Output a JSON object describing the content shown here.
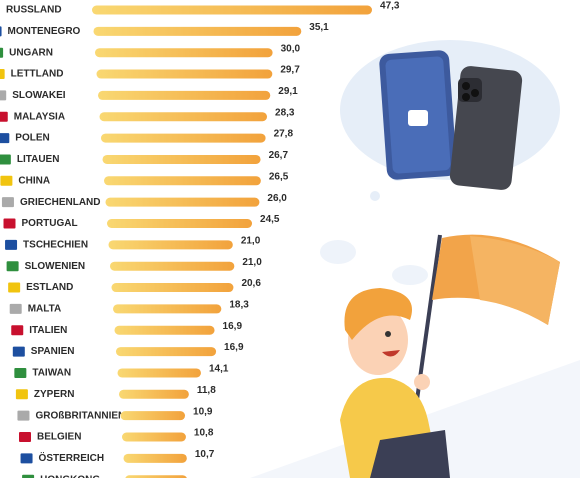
{
  "chart_data": {
    "type": "bar",
    "orientation": "horizontal",
    "categories": [
      "RUSSLAND",
      "MONTENEGRO",
      "UNGARN",
      "LETTLAND",
      "SLOWAKEI",
      "MALAYSIA",
      "POLEN",
      "LITAUEN",
      "CHINA",
      "GRIECHENLAND",
      "PORTUGAL",
      "TSCHECHIEN",
      "SLOWENIEN",
      "ESTLAND",
      "MALTA",
      "ITALIEN",
      "SPANIEN",
      "TAIWAN",
      "ZYPERN",
      "GROßBRITANNIEN",
      "BELGIEN",
      "ÖSTERREICH",
      "HONGKONG"
    ],
    "values": [
      47.3,
      35.1,
      30.0,
      29.7,
      29.1,
      28.3,
      27.8,
      26.7,
      26.5,
      26.0,
      24.5,
      21.0,
      21.0,
      20.6,
      18.3,
      16.9,
      16.9,
      14.1,
      11.8,
      10.9,
      10.8,
      10.7,
      10.5
    ],
    "value_labels": [
      "47,3",
      "35,1",
      "30,0",
      "29,7",
      "29,1",
      "28,3",
      "27,8",
      "26,7",
      "26,5",
      "26,0",
      "24,5",
      "21,0",
      "21,0",
      "20,6",
      "18,3",
      "16,9",
      "16,9",
      "14,1",
      "11,8",
      "10,9",
      "10,8",
      "10,7",
      null
    ],
    "color": [
      "#f9d872",
      "#f2a23c"
    ]
  }
}
